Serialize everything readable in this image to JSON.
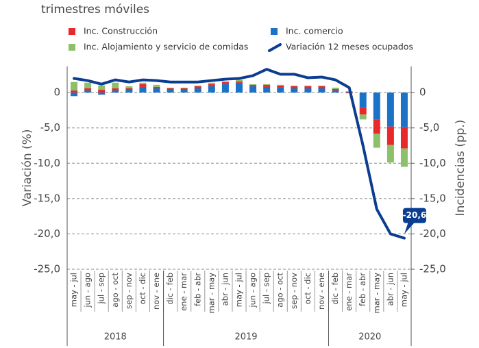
{
  "chart_data": {
    "type": "bar_line",
    "subtitle": "trimestres móviles",
    "y_label": "Variación (%)",
    "y2_label": "Incidencias (pp.)",
    "categories": [
      "may - jul",
      "jun - ago",
      "jul - sep",
      "ago - oct",
      "sep - nov",
      "oct - dic",
      "nov - ene",
      "dic - feb",
      "ene - mar",
      "feb - abr",
      "mar - may",
      "abr - jun",
      "may - jul",
      "jun - ago",
      "jul - sep",
      "ago - oct",
      "sep - nov",
      "oct - dic",
      "nov - ene",
      "dic - feb",
      "ene - mar",
      "feb - abr",
      "mar - may",
      "abr - jun",
      "may - jul"
    ],
    "groups": [
      {
        "label": "2018",
        "count": 7
      },
      {
        "label": "2019",
        "count": 12
      },
      {
        "label": "2020",
        "count": 6
      }
    ],
    "series": [
      {
        "name": "Inc. comercio",
        "color": "#1a73c8",
        "axis": "y2",
        "values": [
          -0.5,
          0.3,
          -0.3,
          0.3,
          0.4,
          0.8,
          0.6,
          0.4,
          0.4,
          0.6,
          0.9,
          1.2,
          1.4,
          0.9,
          0.8,
          0.7,
          0.6,
          0.6,
          0.6,
          0.3,
          -0.1,
          -2.1,
          -3.8,
          -4.8,
          -4.9
        ]
      },
      {
        "name": "Inc. Construcción",
        "color": "#e8282b",
        "axis": "y2",
        "values": [
          0.3,
          0.3,
          0.4,
          0.3,
          0.2,
          0.4,
          0.2,
          0.2,
          0.2,
          0.3,
          0.3,
          0.3,
          0.2,
          0.2,
          0.3,
          0.3,
          0.3,
          0.3,
          0.3,
          0.2,
          0.1,
          -1.0,
          -2.0,
          -2.6,
          -3.0
        ]
      },
      {
        "name": "Inc. Alojamiento y servicio de comidas",
        "color": "#8dc06a",
        "axis": "y2",
        "values": [
          1.2,
          0.8,
          0.6,
          0.8,
          0.3,
          0.2,
          0.3,
          0.1,
          0.1,
          0.1,
          0.2,
          0.1,
          0.2,
          0.1,
          0.1,
          0.1,
          0.1,
          0.1,
          0.1,
          0.2,
          0.1,
          -0.7,
          -2.0,
          -2.5,
          -2.6
        ]
      },
      {
        "name": "Variación 12 meses ocupados",
        "color": "#0b3d91",
        "kind": "line",
        "values": [
          2.0,
          1.7,
          1.2,
          1.8,
          1.5,
          1.8,
          1.7,
          1.5,
          1.5,
          1.5,
          1.7,
          1.9,
          2.0,
          2.4,
          3.3,
          2.6,
          2.6,
          2.1,
          2.2,
          1.8,
          0.7,
          -7.5,
          -16.5,
          -20.0,
          -20.6
        ],
        "value_labels": [
          null,
          null,
          null,
          null,
          null,
          null,
          null,
          null,
          null,
          null,
          null,
          null,
          null,
          null,
          null,
          null,
          null,
          null,
          null,
          null,
          null,
          null,
          null,
          null,
          "-20,6"
        ]
      }
    ],
    "ylim": [
      -25,
      3.7
    ],
    "yticks": [
      0,
      {
        "value": -5,
        "label": "-5,0"
      },
      {
        "value": -10,
        "label": "-10,0"
      },
      {
        "value": -15,
        "label": "-15,0"
      },
      {
        "value": -20,
        "label": "-20,0"
      },
      {
        "value": -25,
        "label": "-25,0"
      }
    ],
    "y2lim": [
      -25,
      3.7
    ],
    "y2ticks": [
      0,
      {
        "value": -5,
        "label": "-5,0"
      },
      {
        "value": -10,
        "label": "-10,0"
      },
      {
        "value": -15,
        "label": "-15,0"
      },
      {
        "value": -20,
        "label": "-20,0"
      },
      {
        "value": -25,
        "label": "-25,0"
      }
    ],
    "grid": true
  }
}
